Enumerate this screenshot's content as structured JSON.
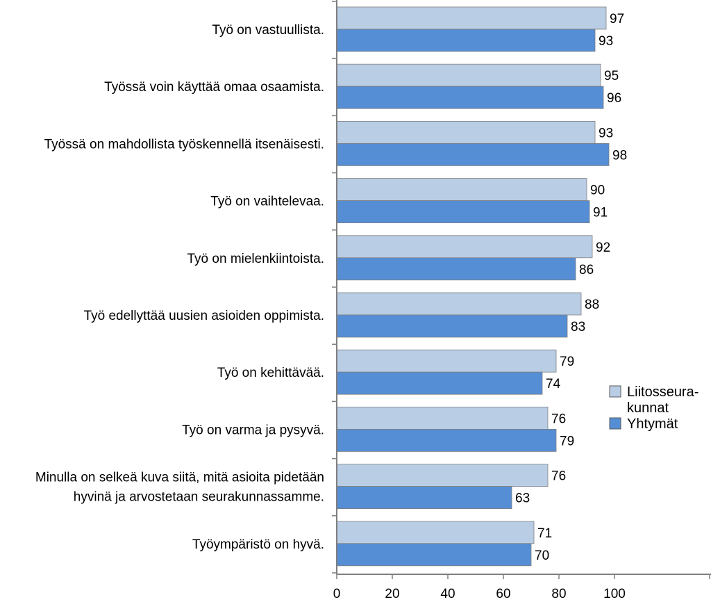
{
  "chart_data": {
    "type": "bar",
    "orientation": "horizontal",
    "categories": [
      [
        "Työ on vastuullista."
      ],
      [
        "Työssä voin käyttää omaa osaamista."
      ],
      [
        "Työssä on mahdollista työskennellä itsenäisesti."
      ],
      [
        "Työ on vaihtelevaa."
      ],
      [
        "Työ on mielenkiintoista."
      ],
      [
        "Työ edellyttää uusien asioiden oppimista."
      ],
      [
        "Työ on kehittävää."
      ],
      [
        "Työ on varma ja pysyvä."
      ],
      [
        "Minulla on selkeä kuva siitä, mitä asioita pidetään",
        "hyvinä ja arvostetaan seurakunnassamme."
      ],
      [
        "Työympäristö on hyvä."
      ]
    ],
    "series": [
      {
        "name": [
          "Liitosseura-",
          "kunnat"
        ],
        "color": "#B9CDE5",
        "values": [
          97,
          95,
          93,
          90,
          92,
          88,
          79,
          76,
          76,
          71
        ]
      },
      {
        "name": [
          "Yhtymät"
        ],
        "color": "#558ED5",
        "values": [
          93,
          96,
          98,
          91,
          86,
          83,
          74,
          79,
          63,
          70
        ]
      }
    ],
    "xlim": [
      0,
      100
    ],
    "xticks": [
      "0",
      "20",
      "40",
      "60",
      "80",
      "100"
    ],
    "grid": false,
    "legend_position": "right"
  }
}
